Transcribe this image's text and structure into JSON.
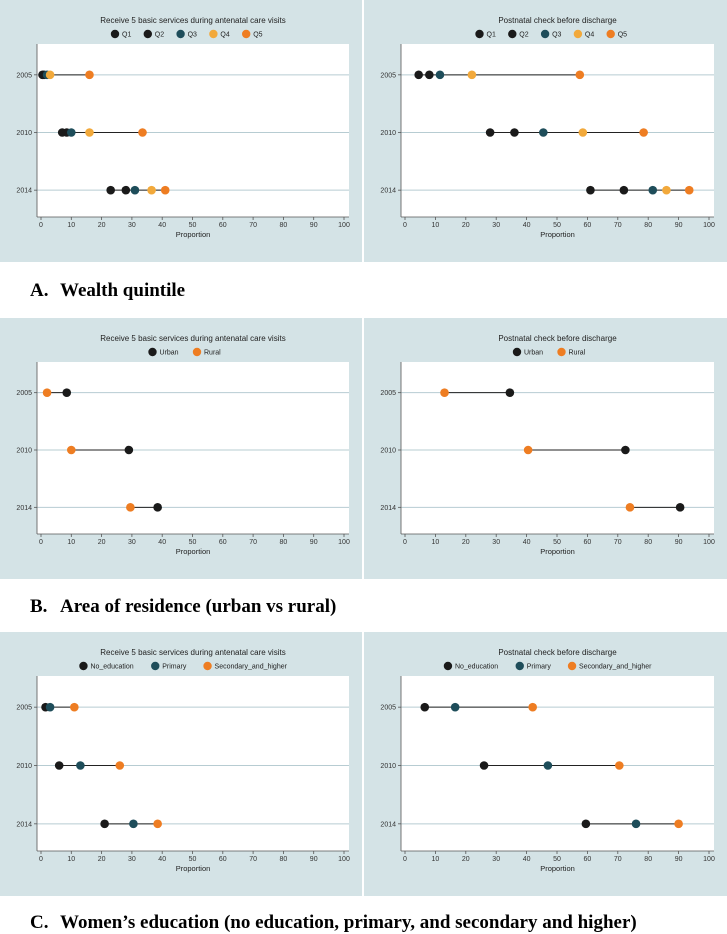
{
  "colors": {
    "panel_bg": "#d4e3e6",
    "plot_bg": "#ffffff",
    "grid": "#b7ccd2",
    "axis": "#555555",
    "range_line": "#222222"
  },
  "sections": [
    {
      "letter": "A.",
      "text": "Wealth quintile"
    },
    {
      "letter": "B.",
      "text": "Area of residence (urban vs rural)"
    },
    {
      "letter": "C.",
      "text": "Women’s education (no education, primary, and secondary and higher)"
    }
  ],
  "chart_data": [
    {
      "type": "scatter",
      "title": "Receive 5 basic services during antenatal care visits",
      "xlabel": "Proportion",
      "xlim": [
        0,
        100
      ],
      "xticks": [
        "0",
        "10",
        "20",
        "30",
        "40",
        "50",
        "60",
        "70",
        "80",
        "90",
        "100"
      ],
      "categories": [
        "2005",
        "2010",
        "2014"
      ],
      "series": [
        {
          "name": "Q1",
          "color": "#1a1a1a",
          "values": [
            0.5,
            7,
            23
          ]
        },
        {
          "name": "Q2",
          "color": "#1a1a1a",
          "values": [
            1,
            8.5,
            28
          ]
        },
        {
          "name": "Q3",
          "color": "#1e4d5a",
          "values": [
            2,
            10,
            31
          ]
        },
        {
          "name": "Q4",
          "color": "#f2a93b",
          "values": [
            3,
            16,
            36.5
          ]
        },
        {
          "name": "Q5",
          "color": "#ee7d22",
          "values": [
            16,
            33.5,
            41
          ]
        }
      ]
    },
    {
      "type": "scatter",
      "title": "Postnatal check before discharge",
      "xlabel": "Proportion",
      "xlim": [
        0,
        100
      ],
      "xticks": [
        "0",
        "10",
        "20",
        "30",
        "40",
        "50",
        "60",
        "70",
        "80",
        "90",
        "100"
      ],
      "categories": [
        "2005",
        "2010",
        "2014"
      ],
      "series": [
        {
          "name": "Q1",
          "color": "#1a1a1a",
          "values": [
            4.5,
            28,
            61
          ]
        },
        {
          "name": "Q2",
          "color": "#1a1a1a",
          "values": [
            8,
            36,
            72
          ]
        },
        {
          "name": "Q3",
          "color": "#1e4d5a",
          "values": [
            11.5,
            45.5,
            81.5
          ]
        },
        {
          "name": "Q4",
          "color": "#f2a93b",
          "values": [
            22,
            58.5,
            86
          ]
        },
        {
          "name": "Q5",
          "color": "#ee7d22",
          "values": [
            57.5,
            78.5,
            93.5
          ]
        }
      ]
    },
    {
      "type": "scatter",
      "title": "Receive 5 basic services during antenatal care visits",
      "xlabel": "Proportion",
      "xlim": [
        0,
        100
      ],
      "xticks": [
        "0",
        "10",
        "20",
        "30",
        "40",
        "50",
        "60",
        "70",
        "80",
        "90",
        "100"
      ],
      "categories": [
        "2005",
        "2010",
        "2014"
      ],
      "series": [
        {
          "name": "Urban",
          "color": "#1a1a1a",
          "values": [
            8.5,
            29,
            38.5
          ]
        },
        {
          "name": "Rural",
          "color": "#ee7d22",
          "values": [
            2,
            10,
            29.5
          ]
        }
      ]
    },
    {
      "type": "scatter",
      "title": "Postnatal check before discharge",
      "xlabel": "Proportion",
      "xlim": [
        0,
        100
      ],
      "xticks": [
        "0",
        "10",
        "20",
        "30",
        "40",
        "50",
        "60",
        "70",
        "80",
        "90",
        "100"
      ],
      "categories": [
        "2005",
        "2010",
        "2014"
      ],
      "series": [
        {
          "name": "Urban",
          "color": "#1a1a1a",
          "values": [
            34.5,
            72.5,
            90.5
          ]
        },
        {
          "name": "Rural",
          "color": "#ee7d22",
          "values": [
            13,
            40.5,
            74
          ]
        }
      ]
    },
    {
      "type": "scatter",
      "title": "Receive 5 basic services during antenatal care visits",
      "xlabel": "Proportion",
      "xlim": [
        0,
        100
      ],
      "xticks": [
        "0",
        "10",
        "20",
        "30",
        "40",
        "50",
        "60",
        "70",
        "80",
        "90",
        "100"
      ],
      "categories": [
        "2005",
        "2010",
        "2014"
      ],
      "series": [
        {
          "name": "No_education",
          "color": "#1a1a1a",
          "values": [
            1.5,
            6,
            21
          ]
        },
        {
          "name": "Primary",
          "color": "#1e4d5a",
          "values": [
            3,
            13,
            30.5
          ]
        },
        {
          "name": "Secondary_and_higher",
          "color": "#ee7d22",
          "values": [
            11,
            26,
            38.5
          ]
        }
      ]
    },
    {
      "type": "scatter",
      "title": "Postnatal check before discharge",
      "xlabel": "Proportion",
      "xlim": [
        0,
        100
      ],
      "xticks": [
        "0",
        "10",
        "20",
        "30",
        "40",
        "50",
        "60",
        "70",
        "80",
        "90",
        "100"
      ],
      "categories": [
        "2005",
        "2010",
        "2014"
      ],
      "series": [
        {
          "name": "No_education",
          "color": "#1a1a1a",
          "values": [
            6.5,
            26,
            59.5
          ]
        },
        {
          "name": "Primary",
          "color": "#1e4d5a",
          "values": [
            16.5,
            47,
            76
          ]
        },
        {
          "name": "Secondary_and_higher",
          "color": "#ee7d22",
          "values": [
            42,
            70.5,
            90
          ]
        }
      ]
    }
  ]
}
